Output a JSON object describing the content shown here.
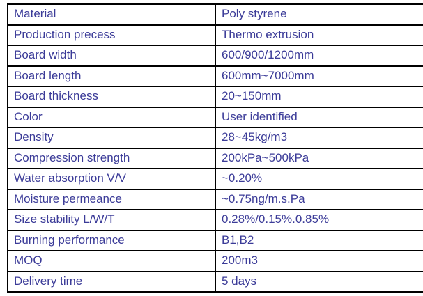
{
  "page": {
    "background_color": "#ffffff",
    "text_color": "#3b3b98",
    "border_color": "#000000"
  },
  "spec_table": {
    "columns": [
      "property",
      "value"
    ],
    "rows": [
      {
        "label": "Material",
        "value": "Poly styrene"
      },
      {
        "label": "Production precess",
        "value": "Thermo extrusion"
      },
      {
        "label": "Board width",
        "value": "600/900/1200mm"
      },
      {
        "label": "Board length",
        "value": "600mm~7000mm"
      },
      {
        "label": "Board thickness",
        "value": "20~150mm"
      },
      {
        "label": "Color",
        "value": "User identified"
      },
      {
        "label": "Density",
        "value": "28~45kg/m3"
      },
      {
        "label": "Compression strength",
        "value": "200kPa~500kPa"
      },
      {
        "label": "Water absorption V/V",
        "value": "~0.20%"
      },
      {
        "label": "Moisture permeance",
        "value": "~0.75ng/m.s.Pa"
      },
      {
        "label": "Size stability L/W/T",
        "value": "0.28%/0.15%.0.85%"
      },
      {
        "label": "Burning performance",
        "value": "B1,B2"
      },
      {
        "label": "MOQ",
        "value": "200m3"
      },
      {
        "label": "Delivery time",
        "value": "5 days"
      }
    ]
  }
}
